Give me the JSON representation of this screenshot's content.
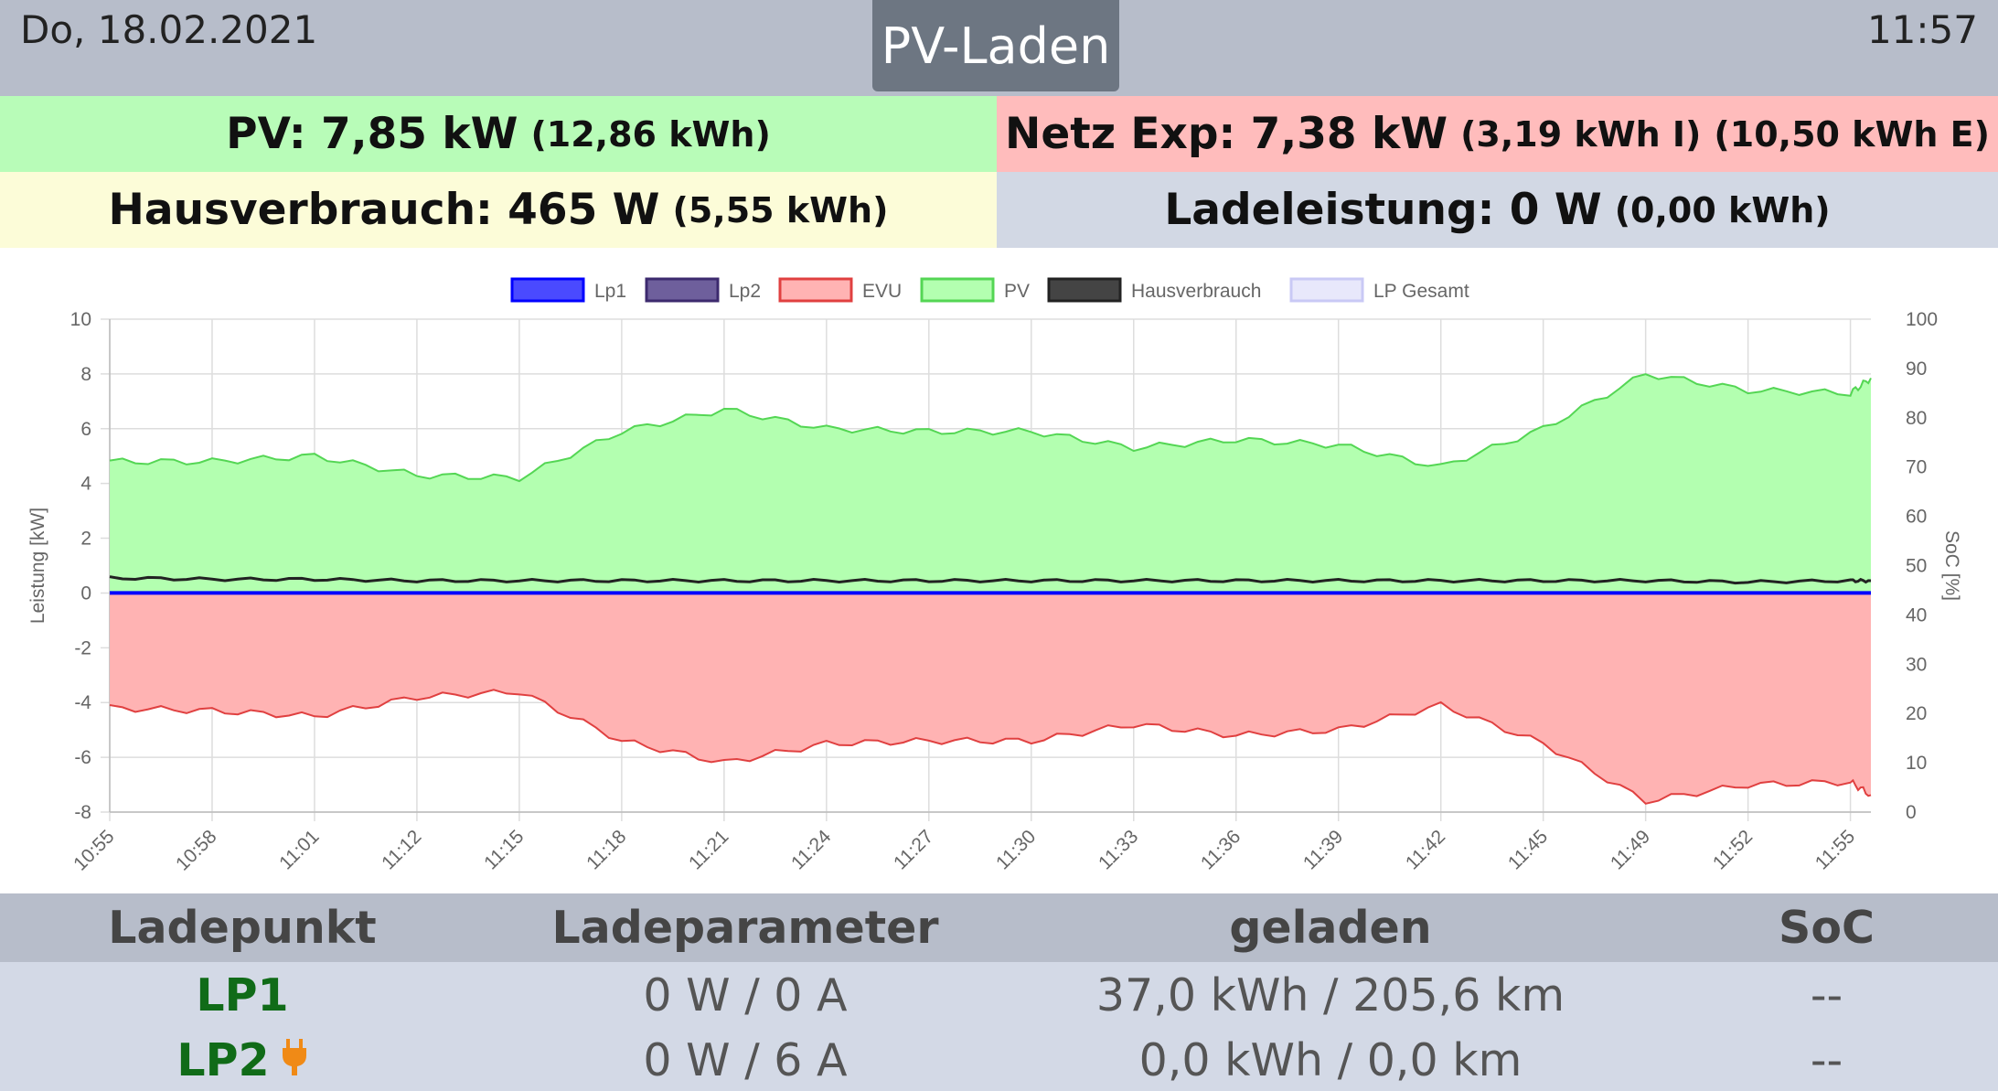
{
  "header": {
    "date": "Do, 18.02.2021",
    "mode": "PV-Laden",
    "time": "11:57"
  },
  "stats": {
    "pv": {
      "label": "PV: 7,85 kW",
      "detail": "(12,86 kWh)"
    },
    "netz": {
      "label": "Netz Exp: 7,38 kW",
      "detail_import": "(3,19 kWh I)",
      "detail_export": "(10,50 kWh E)"
    },
    "haus": {
      "label": "Hausverbrauch: 465 W",
      "detail": "(5,55 kWh)"
    },
    "lade": {
      "label": "Ladeleistung: 0 W",
      "detail": "(0,00 kWh)"
    }
  },
  "chart_data": {
    "type": "area",
    "legend": [
      {
        "name": "Lp1",
        "color": "#0000ff",
        "fill": "#4a4aff"
      },
      {
        "name": "Lp2",
        "color": "#3c2a6e",
        "fill": "#6e5f9c"
      },
      {
        "name": "EVU",
        "color": "#e04040",
        "fill": "#ffb3b3"
      },
      {
        "name": "PV",
        "color": "#54d654",
        "fill": "#b3ffb0"
      },
      {
        "name": "Hausverbrauch",
        "color": "#222222",
        "fill": "#444444"
      },
      {
        "name": "LP Gesamt",
        "color": "#c9c9f5",
        "fill": "#e8e8fb"
      }
    ],
    "ylabel": "Leistung [kW]",
    "y2label": "SoC [%]",
    "ylim": [
      -8,
      10
    ],
    "y2lim": [
      0,
      100
    ],
    "yticks": [
      "10",
      "8",
      "6",
      "4",
      "2",
      "0",
      "-2",
      "-4",
      "-6",
      "-8"
    ],
    "y2ticks": [
      "100",
      "90",
      "80",
      "70",
      "60",
      "50",
      "40",
      "30",
      "20",
      "10",
      "0"
    ],
    "xticks": [
      "10:55",
      "10:58",
      "11:01",
      "11:12",
      "11:15",
      "11:18",
      "11:21",
      "11:24",
      "11:27",
      "11:30",
      "11:33",
      "11:36",
      "11:39",
      "11:42",
      "11:45",
      "11:49",
      "11:52",
      "11:55"
    ],
    "x_index": [
      0,
      1,
      2,
      3,
      4,
      5,
      6,
      7,
      8,
      9,
      10,
      11,
      12,
      13,
      14,
      15,
      16,
      17,
      17.2
    ],
    "pv": [
      4.8,
      4.8,
      5.0,
      4.3,
      4.2,
      5.9,
      6.7,
      6.0,
      5.9,
      5.9,
      5.3,
      5.6,
      5.4,
      4.6,
      6.0,
      8.0,
      7.4,
      7.3,
      7.85
    ],
    "hausverbrauch": [
      0.55,
      0.5,
      0.5,
      0.45,
      0.45,
      0.45,
      0.45,
      0.45,
      0.45,
      0.45,
      0.45,
      0.45,
      0.45,
      0.45,
      0.45,
      0.45,
      0.4,
      0.45,
      0.45
    ],
    "evu": [
      -4.2,
      -4.3,
      -4.5,
      -3.8,
      -3.6,
      -5.4,
      -6.2,
      -5.5,
      -5.4,
      -5.4,
      -4.8,
      -5.2,
      -5.0,
      -4.1,
      -5.5,
      -7.6,
      -7.0,
      -6.9,
      -7.38
    ],
    "lp1": [
      0,
      0,
      0,
      0,
      0,
      0,
      0,
      0,
      0,
      0,
      0,
      0,
      0,
      0,
      0,
      0,
      0,
      0,
      0
    ],
    "grid": true,
    "legend_position": "top"
  },
  "table": {
    "headers": [
      "Ladepunkt",
      "Ladeparameter",
      "geladen",
      "SoC"
    ],
    "rows": [
      {
        "name": "LP1",
        "param": "0 W / 0 A",
        "charged": "37,0 kWh / 205,6 km",
        "soc": "--"
      },
      {
        "name": "LP2",
        "param": "0 W / 6 A",
        "charged": "0,0 kWh / 0,0 km",
        "soc": "--"
      }
    ]
  }
}
